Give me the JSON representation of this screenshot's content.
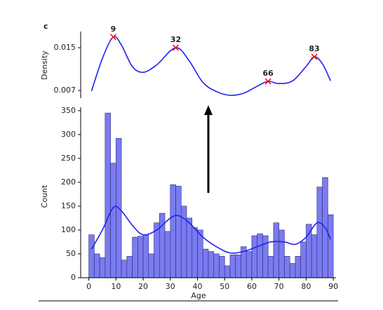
{
  "chart_data": [
    {
      "type": "line",
      "panel_label": "c",
      "ylabel": "Density",
      "color": "#2020ee",
      "x": [
        1,
        5,
        9,
        12,
        16,
        20,
        25,
        32,
        37,
        42,
        47,
        52,
        57,
        62,
        66,
        70,
        75,
        80,
        83,
        86,
        89
      ],
      "values": [
        0.0069,
        0.013,
        0.017,
        0.0155,
        0.0115,
        0.0104,
        0.0118,
        0.015,
        0.0125,
        0.0085,
        0.0068,
        0.0061,
        0.0065,
        0.0078,
        0.0087,
        0.0083,
        0.0088,
        0.0115,
        0.0133,
        0.012,
        0.0088
      ],
      "peaks": {
        "x": [
          9,
          32,
          66,
          83
        ],
        "values": [
          0.017,
          0.015,
          0.0087,
          0.0133
        ],
        "color": "#ff0000"
      },
      "xlim": [
        -3,
        91
      ],
      "ylim": [
        0.00556,
        0.01802
      ],
      "yticks": [
        0.007,
        0.015
      ]
    },
    {
      "type": "histogram",
      "xlabel": "Age",
      "ylabel": "Count",
      "color": "#7b7bf0",
      "edgecolor": "#2a2a7a",
      "bins": [
        0,
        2,
        4,
        6,
        8,
        10,
        12,
        14,
        16,
        18,
        20,
        22,
        24,
        26,
        28,
        30,
        32,
        34,
        36,
        38,
        40,
        42,
        44,
        46,
        48,
        50,
        52,
        54,
        56,
        58,
        60,
        62,
        64,
        66,
        68,
        70,
        72,
        74,
        76,
        78,
        80,
        82,
        84,
        86,
        88,
        90
      ],
      "values": [
        90,
        50,
        42,
        345,
        240,
        292,
        37,
        45,
        85,
        87,
        90,
        50,
        115,
        135,
        97,
        195,
        192,
        150,
        125,
        105,
        100,
        60,
        55,
        50,
        45,
        25,
        48,
        48,
        65,
        55,
        88,
        92,
        88,
        45,
        115,
        100,
        45,
        30,
        45,
        75,
        112,
        90,
        190,
        210,
        132
      ],
      "kde": {
        "color": "#2020ee",
        "x": [
          1,
          5,
          9,
          12,
          16,
          20,
          25,
          30,
          33,
          37,
          42,
          47,
          52,
          57,
          62,
          67,
          72,
          76,
          80,
          84,
          87,
          89
        ],
        "values": [
          60,
          100,
          147,
          140,
          110,
          90,
          100,
          125,
          130,
          115,
          85,
          65,
          52,
          55,
          65,
          75,
          75,
          70,
          85,
          115,
          105,
          80
        ]
      },
      "xlim": [
        -3,
        91
      ],
      "ylim": [
        0,
        357
      ],
      "xticks": [
        0,
        10,
        20,
        30,
        40,
        50,
        60,
        70,
        80,
        90
      ],
      "yticks": [
        0,
        50,
        100,
        150,
        200,
        250,
        300,
        350
      ]
    }
  ]
}
